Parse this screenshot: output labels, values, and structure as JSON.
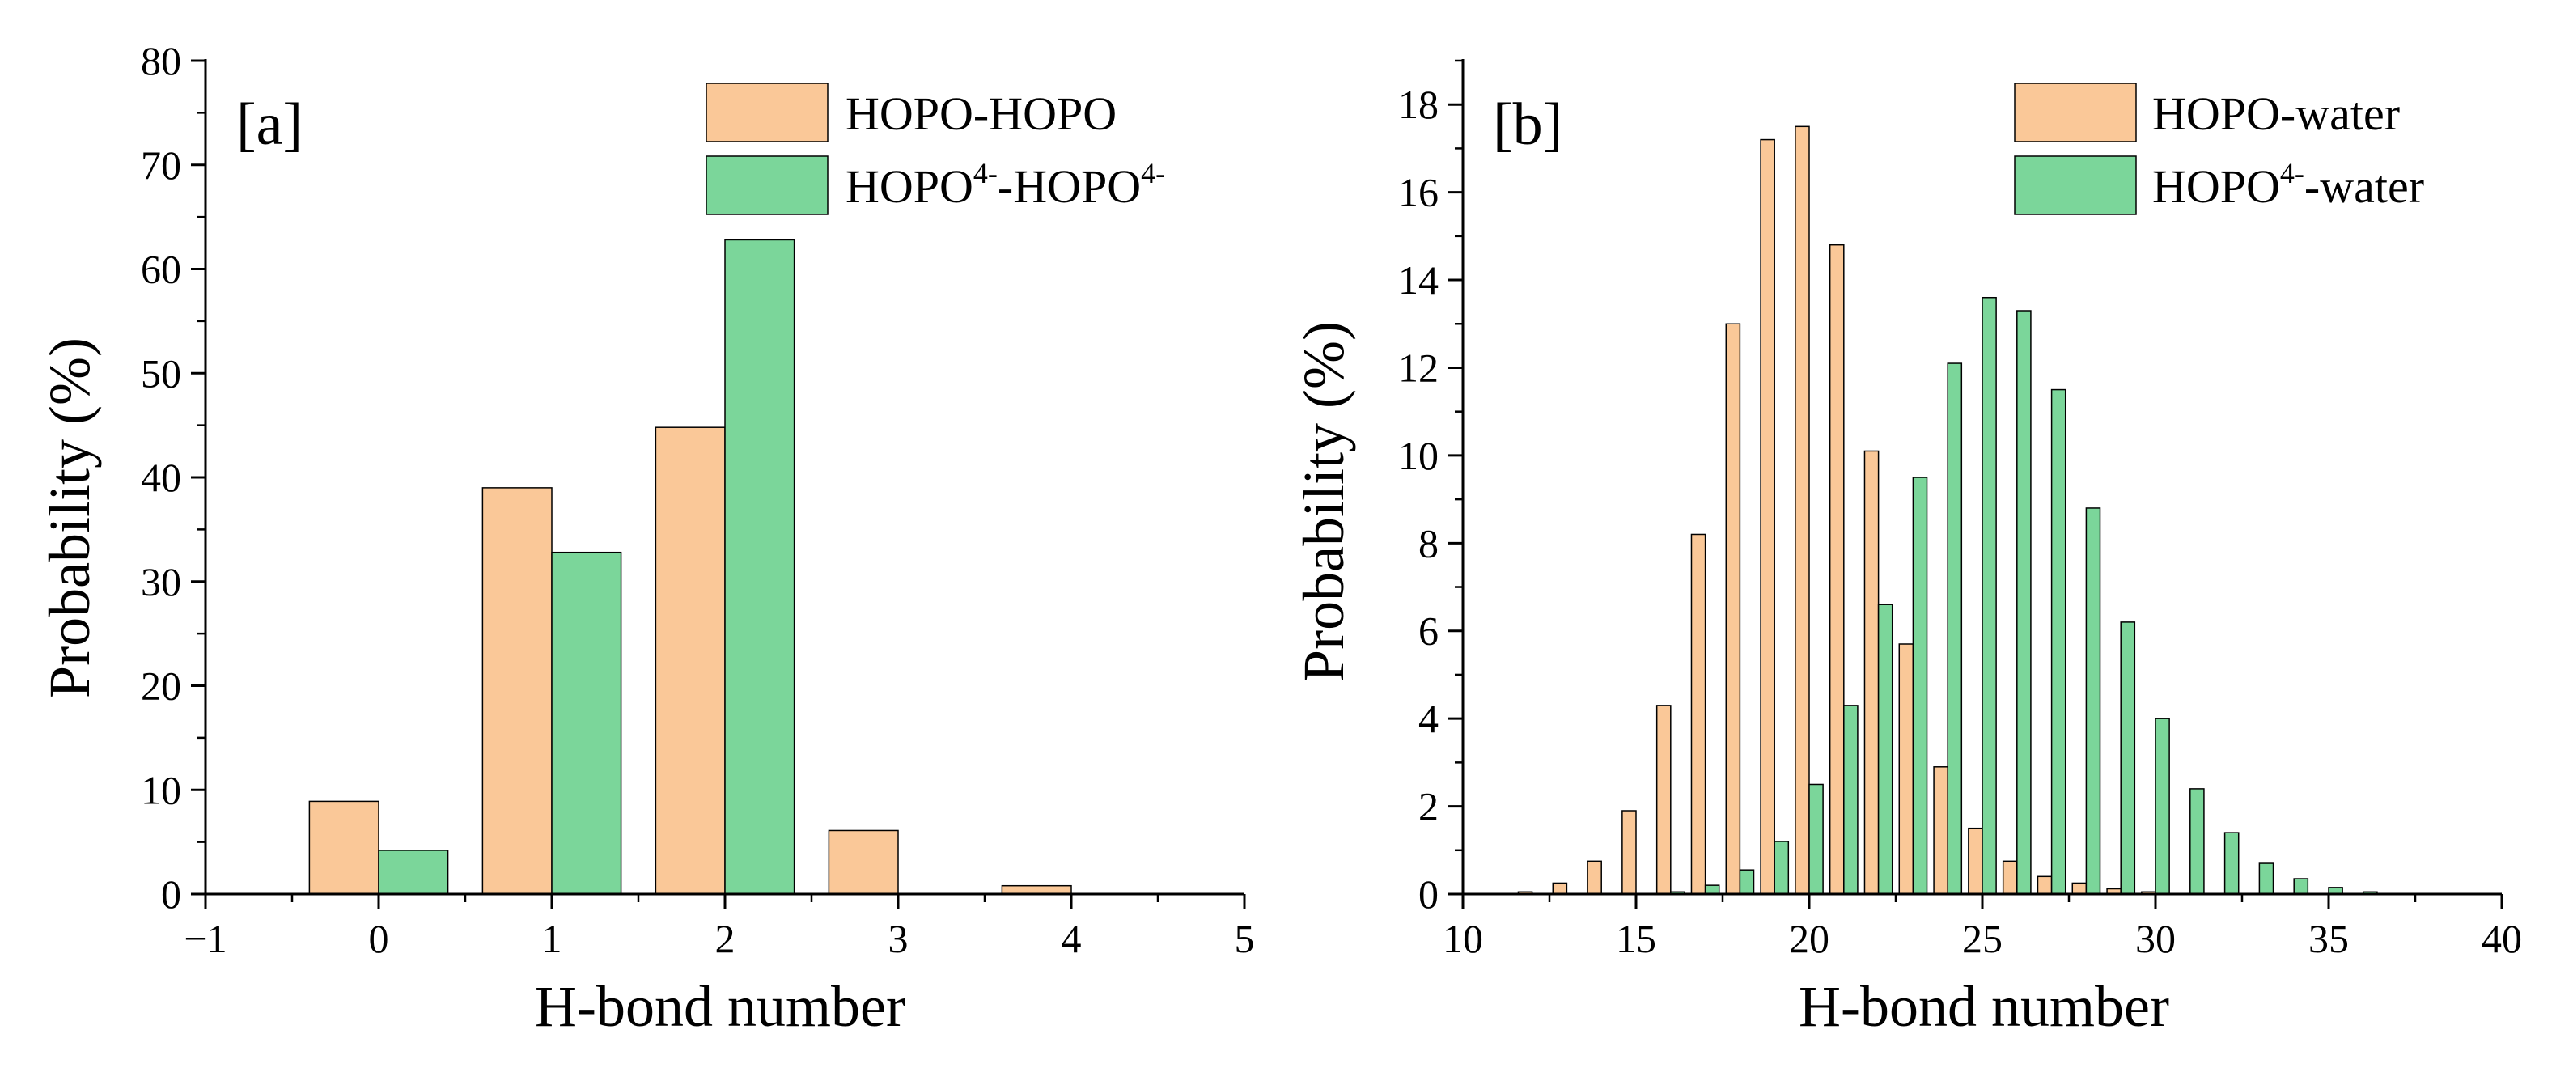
{
  "chart_data": [
    {
      "panel_label": "[a]",
      "type": "bar",
      "xlabel": "H-bond number",
      "ylabel": "Probability (%)",
      "xlim": [
        -1,
        5
      ],
      "ylim": [
        0,
        80
      ],
      "xticks": [
        "−1",
        "0",
        "1",
        "2",
        "3",
        "4",
        "5"
      ],
      "yticks": [
        "0",
        "10",
        "20",
        "30",
        "40",
        "50",
        "60",
        "70",
        "80"
      ],
      "bar_width": 0.4,
      "legend_position": "top-right",
      "series": [
        {
          "name": "HOPO-HOPO",
          "legend_parts": {
            "main": "HOPO-HOPO"
          },
          "color": "#FAC898",
          "x": [
            0,
            1,
            2,
            3,
            4
          ],
          "values": [
            8.9,
            39.0,
            44.8,
            6.1,
            0.8
          ]
        },
        {
          "name": "HOPO4−-HOPO4−",
          "legend_parts": {
            "a": "HOPO",
            "sup1": "4-",
            "b": "-HOPO",
            "sup2": "4-"
          },
          "color": "#7BD69A",
          "x": [
            0,
            1,
            2,
            3,
            4
          ],
          "values": [
            4.2,
            32.8,
            62.8,
            0,
            0
          ]
        }
      ]
    },
    {
      "panel_label": "[b]",
      "type": "bar",
      "xlabel": "H-bond number",
      "ylabel": "Probability (%)",
      "xlim": [
        10,
        40
      ],
      "ylim": [
        0,
        19
      ],
      "xticks": [
        "10",
        "15",
        "20",
        "25",
        "30",
        "35",
        "40"
      ],
      "yticks": [
        "0",
        "2",
        "4",
        "6",
        "8",
        "10",
        "12",
        "14",
        "16",
        "18"
      ],
      "bar_width": 0.4,
      "legend_position": "top-right",
      "series": [
        {
          "name": "HOPO-water",
          "legend_parts": {
            "main": "HOPO-water"
          },
          "color": "#FAC898",
          "x": [
            12,
            13,
            14,
            15,
            16,
            17,
            18,
            19,
            20,
            21,
            22,
            23,
            24,
            25,
            26,
            27,
            28,
            29,
            30
          ],
          "values": [
            0.05,
            0.25,
            0.75,
            1.9,
            4.3,
            8.2,
            13.0,
            17.2,
            17.5,
            14.8,
            10.1,
            5.7,
            2.9,
            1.5,
            0.75,
            0.4,
            0.25,
            0.12,
            0.05
          ]
        },
        {
          "name": "HOPO4−-water",
          "legend_parts": {
            "a": "HOPO",
            "sup1": "4-",
            "b": "-water"
          },
          "color": "#7BD69A",
          "x": [
            16,
            17,
            18,
            19,
            20,
            21,
            22,
            23,
            24,
            25,
            26,
            27,
            28,
            29,
            30,
            31,
            32,
            33,
            34,
            35,
            36
          ],
          "values": [
            0.05,
            0.2,
            0.55,
            1.2,
            2.5,
            4.3,
            6.6,
            9.5,
            12.1,
            13.6,
            13.3,
            11.5,
            8.8,
            6.2,
            4.0,
            2.4,
            1.4,
            0.7,
            0.35,
            0.15,
            0.05
          ]
        }
      ]
    }
  ]
}
